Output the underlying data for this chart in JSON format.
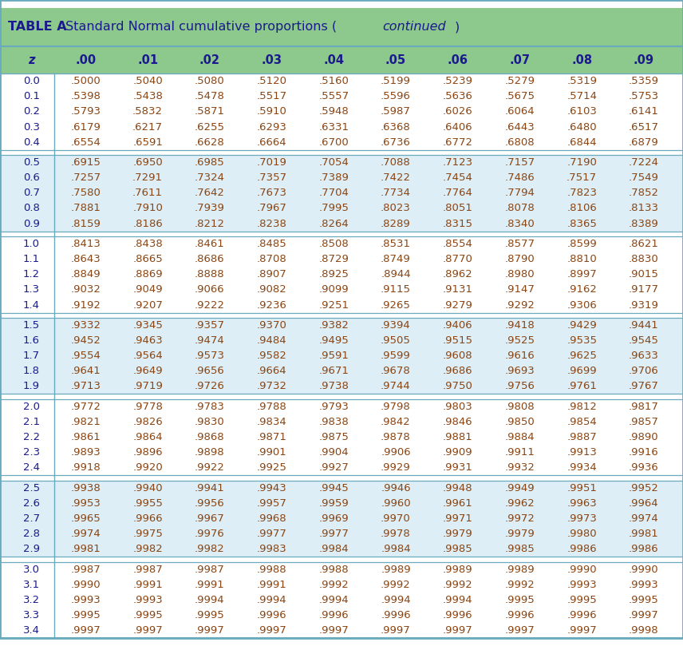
{
  "title_part1": "TABLE A",
  "title_part2": " Standard Normal cumulative proportions (",
  "title_part3": "continued",
  "title_part4": ")",
  "col_headers": [
    "z",
    ".00",
    ".01",
    ".02",
    ".03",
    ".04",
    ".05",
    ".06",
    ".07",
    ".08",
    ".09"
  ],
  "rows": [
    [
      "0.0",
      ".5000",
      ".5040",
      ".5080",
      ".5120",
      ".5160",
      ".5199",
      ".5239",
      ".5279",
      ".5319",
      ".5359"
    ],
    [
      "0.1",
      ".5398",
      ".5438",
      ".5478",
      ".5517",
      ".5557",
      ".5596",
      ".5636",
      ".5675",
      ".5714",
      ".5753"
    ],
    [
      "0.2",
      ".5793",
      ".5832",
      ".5871",
      ".5910",
      ".5948",
      ".5987",
      ".6026",
      ".6064",
      ".6103",
      ".6141"
    ],
    [
      "0.3",
      ".6179",
      ".6217",
      ".6255",
      ".6293",
      ".6331",
      ".6368",
      ".6406",
      ".6443",
      ".6480",
      ".6517"
    ],
    [
      "0.4",
      ".6554",
      ".6591",
      ".6628",
      ".6664",
      ".6700",
      ".6736",
      ".6772",
      ".6808",
      ".6844",
      ".6879"
    ],
    [
      "0.5",
      ".6915",
      ".6950",
      ".6985",
      ".7019",
      ".7054",
      ".7088",
      ".7123",
      ".7157",
      ".7190",
      ".7224"
    ],
    [
      "0.6",
      ".7257",
      ".7291",
      ".7324",
      ".7357",
      ".7389",
      ".7422",
      ".7454",
      ".7486",
      ".7517",
      ".7549"
    ],
    [
      "0.7",
      ".7580",
      ".7611",
      ".7642",
      ".7673",
      ".7704",
      ".7734",
      ".7764",
      ".7794",
      ".7823",
      ".7852"
    ],
    [
      "0.8",
      ".7881",
      ".7910",
      ".7939",
      ".7967",
      ".7995",
      ".8023",
      ".8051",
      ".8078",
      ".8106",
      ".8133"
    ],
    [
      "0.9",
      ".8159",
      ".8186",
      ".8212",
      ".8238",
      ".8264",
      ".8289",
      ".8315",
      ".8340",
      ".8365",
      ".8389"
    ],
    [
      "1.0",
      ".8413",
      ".8438",
      ".8461",
      ".8485",
      ".8508",
      ".8531",
      ".8554",
      ".8577",
      ".8599",
      ".8621"
    ],
    [
      "1.1",
      ".8643",
      ".8665",
      ".8686",
      ".8708",
      ".8729",
      ".8749",
      ".8770",
      ".8790",
      ".8810",
      ".8830"
    ],
    [
      "1.2",
      ".8849",
      ".8869",
      ".8888",
      ".8907",
      ".8925",
      ".8944",
      ".8962",
      ".8980",
      ".8997",
      ".9015"
    ],
    [
      "1.3",
      ".9032",
      ".9049",
      ".9066",
      ".9082",
      ".9099",
      ".9115",
      ".9131",
      ".9147",
      ".9162",
      ".9177"
    ],
    [
      "1.4",
      ".9192",
      ".9207",
      ".9222",
      ".9236",
      ".9251",
      ".9265",
      ".9279",
      ".9292",
      ".9306",
      ".9319"
    ],
    [
      "1.5",
      ".9332",
      ".9345",
      ".9357",
      ".9370",
      ".9382",
      ".9394",
      ".9406",
      ".9418",
      ".9429",
      ".9441"
    ],
    [
      "1.6",
      ".9452",
      ".9463",
      ".9474",
      ".9484",
      ".9495",
      ".9505",
      ".9515",
      ".9525",
      ".9535",
      ".9545"
    ],
    [
      "1.7",
      ".9554",
      ".9564",
      ".9573",
      ".9582",
      ".9591",
      ".9599",
      ".9608",
      ".9616",
      ".9625",
      ".9633"
    ],
    [
      "1.8",
      ".9641",
      ".9649",
      ".9656",
      ".9664",
      ".9671",
      ".9678",
      ".9686",
      ".9693",
      ".9699",
      ".9706"
    ],
    [
      "1.9",
      ".9713",
      ".9719",
      ".9726",
      ".9732",
      ".9738",
      ".9744",
      ".9750",
      ".9756",
      ".9761",
      ".9767"
    ],
    [
      "2.0",
      ".9772",
      ".9778",
      ".9783",
      ".9788",
      ".9793",
      ".9798",
      ".9803",
      ".9808",
      ".9812",
      ".9817"
    ],
    [
      "2.1",
      ".9821",
      ".9826",
      ".9830",
      ".9834",
      ".9838",
      ".9842",
      ".9846",
      ".9850",
      ".9854",
      ".9857"
    ],
    [
      "2.2",
      ".9861",
      ".9864",
      ".9868",
      ".9871",
      ".9875",
      ".9878",
      ".9881",
      ".9884",
      ".9887",
      ".9890"
    ],
    [
      "2.3",
      ".9893",
      ".9896",
      ".9898",
      ".9901",
      ".9904",
      ".9906",
      ".9909",
      ".9911",
      ".9913",
      ".9916"
    ],
    [
      "2.4",
      ".9918",
      ".9920",
      ".9922",
      ".9925",
      ".9927",
      ".9929",
      ".9931",
      ".9932",
      ".9934",
      ".9936"
    ],
    [
      "2.5",
      ".9938",
      ".9940",
      ".9941",
      ".9943",
      ".9945",
      ".9946",
      ".9948",
      ".9949",
      ".9951",
      ".9952"
    ],
    [
      "2.6",
      ".9953",
      ".9955",
      ".9956",
      ".9957",
      ".9959",
      ".9960",
      ".9961",
      ".9962",
      ".9963",
      ".9964"
    ],
    [
      "2.7",
      ".9965",
      ".9966",
      ".9967",
      ".9968",
      ".9969",
      ".9970",
      ".9971",
      ".9972",
      ".9973",
      ".9974"
    ],
    [
      "2.8",
      ".9974",
      ".9975",
      ".9976",
      ".9977",
      ".9977",
      ".9978",
      ".9979",
      ".9979",
      ".9980",
      ".9981"
    ],
    [
      "2.9",
      ".9981",
      ".9982",
      ".9982",
      ".9983",
      ".9984",
      ".9984",
      ".9985",
      ".9985",
      ".9986",
      ".9986"
    ],
    [
      "3.0",
      ".9987",
      ".9987",
      ".9987",
      ".9988",
      ".9988",
      ".9989",
      ".9989",
      ".9989",
      ".9990",
      ".9990"
    ],
    [
      "3.1",
      ".9990",
      ".9991",
      ".9991",
      ".9991",
      ".9992",
      ".9992",
      ".9992",
      ".9992",
      ".9993",
      ".9993"
    ],
    [
      "3.2",
      ".9993",
      ".9993",
      ".9994",
      ".9994",
      ".9994",
      ".9994",
      ".9994",
      ".9995",
      ".9995",
      ".9995"
    ],
    [
      "3.3",
      ".9995",
      ".9995",
      ".9995",
      ".9996",
      ".9996",
      ".9996",
      ".9996",
      ".9996",
      ".9996",
      ".9997"
    ],
    [
      "3.4",
      ".9997",
      ".9997",
      ".9997",
      ".9997",
      ".9997",
      ".9997",
      ".9997",
      ".9997",
      ".9997",
      ".9998"
    ]
  ],
  "group_separators": [
    5,
    10,
    15,
    20,
    25,
    30
  ],
  "group_bg_white": "#ffffff",
  "group_bg_blue": "#ddeef6",
  "title_bg": "#8dc88d",
  "subheader_bg": "#8dc88d",
  "title_color": "#1a1a8c",
  "data_color": "#8B4513",
  "z_color": "#1a1a8c",
  "header_color": "#1a1a8c",
  "border_color": "#6aaabf",
  "outer_border_color": "#6aaabf",
  "figsize": [
    8.56,
    8.09
  ],
  "dpi": 100
}
